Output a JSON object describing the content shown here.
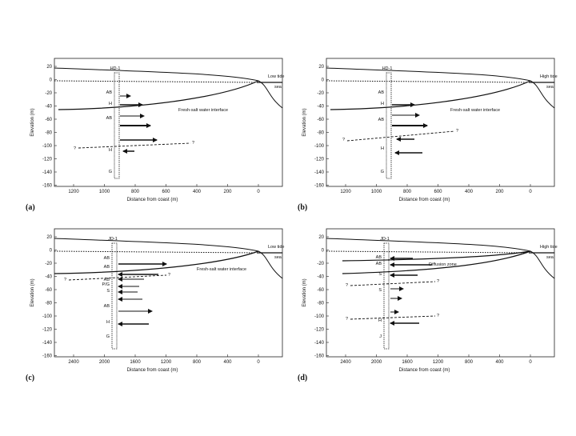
{
  "panels": [
    {
      "id": "a",
      "letter": "(a)",
      "well": "HD-1",
      "tide": "Low tide",
      "sea": "sea",
      "interface": "Fresh-salt water interface",
      "ylabel": "Elevation (m)",
      "xlabel": "Distance from coast (m)",
      "yticks": [
        "20",
        "0",
        "-20",
        "-40",
        "-60",
        "-80",
        "-100",
        "-120",
        "-140",
        "-160"
      ],
      "xticks": [
        "1200",
        "1000",
        "800",
        "600",
        "400",
        "200",
        "0"
      ],
      "layers": [
        "AB",
        "H",
        "AB",
        "H",
        "G"
      ]
    },
    {
      "id": "b",
      "letter": "(b)",
      "well": "HD-1",
      "tide": "High tide",
      "sea": "sea",
      "interface": "Fresh-salt water interface",
      "ylabel": "Elevation (m)",
      "xlabel": "Distance from coast (m)",
      "yticks": [
        "20",
        "0",
        "-20",
        "-40",
        "-60",
        "-80",
        "-100",
        "-120",
        "-140",
        "-160"
      ],
      "xticks": [
        "1200",
        "1000",
        "800",
        "600",
        "400",
        "200",
        "0"
      ],
      "layers": [
        "AB",
        "H",
        "AB",
        "H",
        "G"
      ]
    },
    {
      "id": "c",
      "letter": "(c)",
      "well": "JD-1",
      "tide": "Low tide",
      "sea": "sea",
      "interface": "Fresh-salt water interface",
      "ylabel": "Elevation (m)",
      "xlabel": "Distance from coast (m)",
      "yticks": [
        "20",
        "0",
        "-20",
        "-40",
        "-60",
        "-80",
        "-100",
        "-120",
        "-140",
        "-160"
      ],
      "xticks": [
        "2400",
        "2000",
        "1600",
        "1200",
        "800",
        "400",
        "0"
      ],
      "layers": [
        "AB",
        "AB",
        "AB",
        "P/G",
        "S",
        "AB",
        "H",
        "G"
      ]
    },
    {
      "id": "d",
      "letter": "(d)",
      "well": "JD-1",
      "tide": "High tide",
      "sea": "sea",
      "interface": "Diffusion zone",
      "ylabel": "Elevation (m)",
      "xlabel": "Distance from coast (m)",
      "yticks": [
        "20",
        "0",
        "-20",
        "-40",
        "-60",
        "-80",
        "-100",
        "-120",
        "-140",
        "-160"
      ],
      "xticks": [
        "2400",
        "2000",
        "1600",
        "1200",
        "800",
        "400",
        "0"
      ],
      "layers": [
        "AB",
        "AB",
        "S",
        "S",
        "H",
        "J"
      ]
    }
  ],
  "question_mark": "?"
}
